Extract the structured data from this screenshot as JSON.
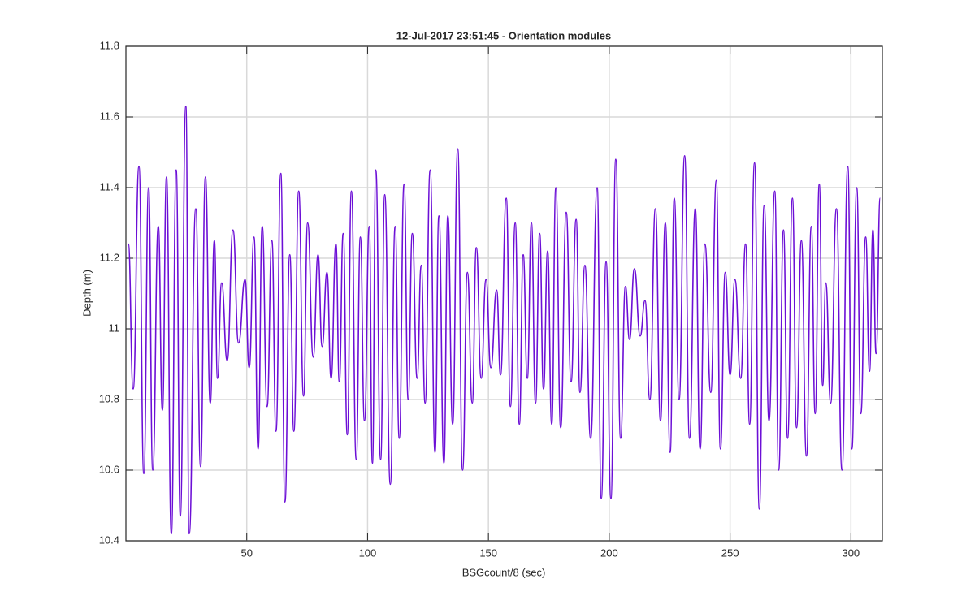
{
  "chart_data": {
    "type": "line",
    "title": "12-Jul-2017 23:51:45 - Orientation modules",
    "xlabel": "BSGcount/8 (sec)",
    "ylabel": "Depth (m)",
    "x": [
      1.0,
      3.0,
      5.4,
      7.4,
      9.4,
      11.1,
      13.4,
      15.1,
      16.8,
      18.8,
      20.8,
      22.5,
      24.8,
      26.2,
      28.9,
      30.9,
      32.9,
      34.9,
      36.6,
      37.9,
      39.6,
      41.9,
      44.3,
      46.6,
      49.3,
      51.0,
      53.0,
      54.7,
      56.4,
      58.4,
      60.4,
      62.1,
      64.1,
      65.8,
      67.8,
      69.5,
      71.5,
      73.5,
      75.2,
      77.5,
      79.5,
      81.2,
      83.2,
      84.9,
      86.9,
      88.3,
      89.9,
      91.6,
      93.3,
      95.3,
      97.0,
      98.7,
      100.7,
      102.0,
      103.4,
      105.4,
      107.1,
      109.4,
      111.4,
      113.1,
      115.1,
      116.8,
      118.5,
      120.5,
      122.2,
      123.8,
      125.9,
      127.9,
      129.5,
      131.6,
      133.2,
      135.2,
      137.3,
      139.3,
      141.3,
      143.3,
      145.0,
      147.0,
      149.0,
      151.0,
      153.4,
      155.0,
      157.4,
      159.1,
      161.1,
      162.8,
      164.4,
      166.1,
      167.8,
      169.5,
      171.2,
      172.8,
      174.5,
      176.2,
      177.9,
      179.9,
      182.2,
      184.2,
      186.3,
      187.9,
      189.9,
      192.3,
      195.0,
      196.7,
      198.7,
      200.7,
      202.7,
      204.7,
      206.7,
      208.4,
      210.4,
      212.8,
      214.8,
      216.8,
      219.1,
      221.2,
      223.2,
      225.2,
      226.9,
      228.9,
      231.2,
      233.2,
      235.6,
      237.6,
      239.6,
      242.0,
      244.3,
      246.0,
      248.0,
      250.0,
      252.0,
      254.4,
      256.4,
      258.1,
      260.1,
      262.1,
      264.1,
      266.1,
      268.5,
      270.1,
      272.1,
      273.8,
      275.8,
      277.5,
      279.5,
      281.6,
      283.6,
      285.2,
      286.9,
      288.3,
      289.6,
      291.6,
      294.0,
      296.3,
      298.7,
      300.4,
      302.4,
      304.1,
      306.1,
      307.7,
      309.1,
      310.4,
      312.1
    ],
    "series": [
      {
        "name": "Depth",
        "color": "#6c0fd6",
        "values": [
          11.24,
          10.83,
          11.46,
          10.59,
          11.4,
          10.6,
          11.29,
          10.77,
          11.43,
          10.42,
          11.45,
          10.47,
          11.63,
          10.42,
          11.34,
          10.61,
          11.43,
          10.79,
          11.25,
          10.86,
          11.13,
          10.91,
          11.28,
          10.96,
          11.14,
          10.89,
          11.26,
          10.66,
          11.29,
          10.78,
          11.25,
          10.71,
          11.44,
          10.51,
          11.21,
          10.71,
          11.39,
          10.81,
          11.3,
          10.92,
          11.21,
          10.95,
          11.16,
          10.86,
          11.24,
          10.85,
          11.27,
          10.7,
          11.39,
          10.63,
          11.26,
          10.74,
          11.29,
          10.62,
          11.45,
          10.63,
          11.38,
          10.56,
          11.29,
          10.69,
          11.41,
          10.8,
          11.27,
          10.86,
          11.18,
          10.79,
          11.45,
          10.65,
          11.32,
          10.62,
          11.32,
          10.73,
          11.51,
          10.6,
          11.16,
          10.79,
          11.23,
          10.86,
          11.14,
          10.89,
          11.11,
          10.87,
          11.37,
          10.78,
          11.3,
          10.73,
          11.21,
          10.86,
          11.3,
          10.79,
          11.27,
          10.83,
          11.22,
          10.73,
          11.4,
          10.72,
          11.33,
          10.85,
          11.31,
          10.82,
          11.18,
          10.69,
          11.4,
          10.52,
          11.19,
          10.52,
          11.48,
          10.69,
          11.12,
          10.97,
          11.17,
          10.98,
          11.08,
          10.8,
          11.34,
          10.74,
          11.3,
          10.65,
          11.37,
          10.8,
          11.49,
          10.69,
          11.34,
          10.66,
          11.24,
          10.82,
          11.42,
          10.66,
          11.16,
          10.87,
          11.14,
          10.86,
          11.24,
          10.73,
          11.47,
          10.49,
          11.35,
          10.74,
          11.39,
          10.6,
          11.28,
          10.69,
          11.37,
          10.72,
          11.25,
          10.64,
          11.29,
          10.76,
          11.41,
          10.84,
          11.13,
          10.79,
          11.34,
          10.6,
          11.46,
          10.66,
          11.4,
          10.76,
          11.26,
          10.88,
          11.28,
          10.93,
          11.37
        ]
      }
    ],
    "xlim": [
      0,
      313
    ],
    "xticks": [
      50,
      100,
      150,
      200,
      250,
      300
    ],
    "ylim": [
      10.4,
      11.8
    ],
    "yticks": [
      10.4,
      10.6,
      10.8,
      11,
      11.2,
      11.4,
      11.6,
      11.8
    ],
    "grid": true
  }
}
